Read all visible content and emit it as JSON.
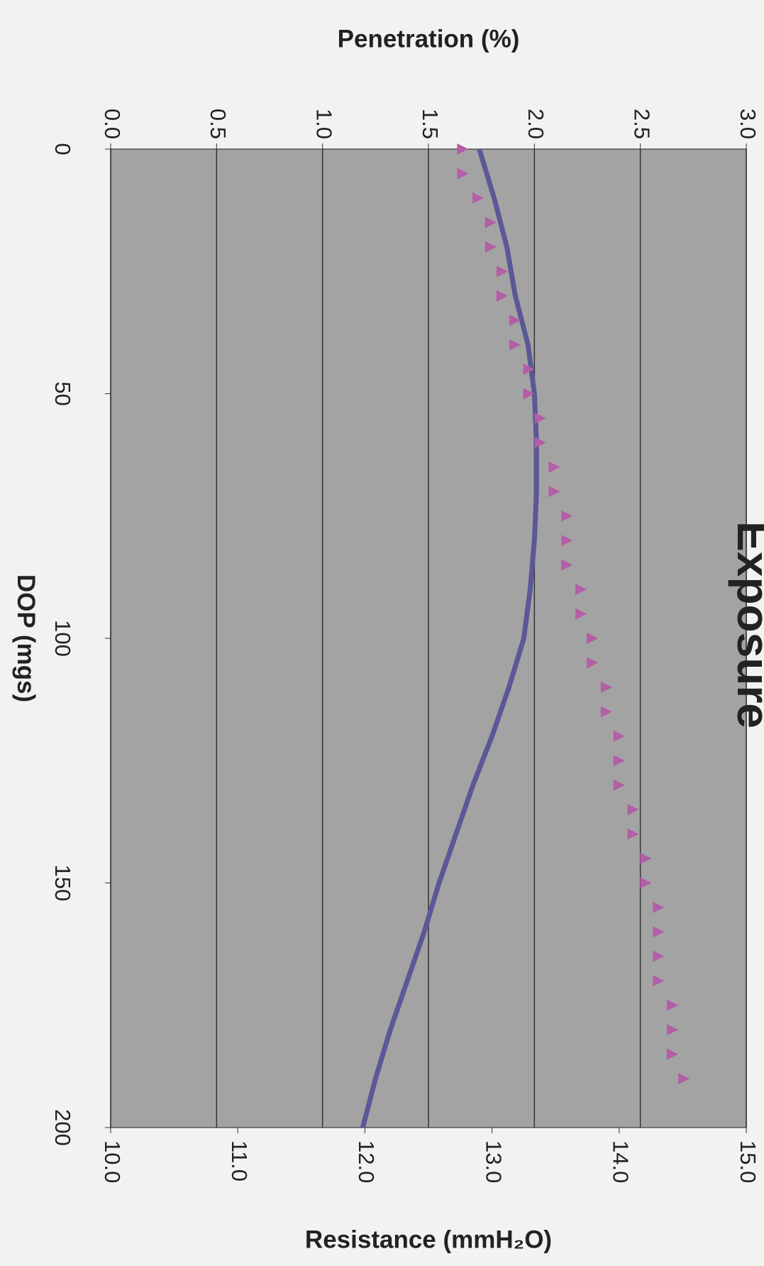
{
  "chart_data": {
    "type": "line",
    "title": "Exposure",
    "xlabel": "DOP (mgs)",
    "ylabel": "Penetration (%)",
    "y2label": "Resistance (mmH₂O)",
    "xlim": [
      0,
      200
    ],
    "xticks": [
      0,
      50,
      100,
      150,
      200
    ],
    "ylim": [
      0,
      3
    ],
    "yticks": [
      {
        "value": 0,
        "label": "0.0"
      },
      {
        "value": 0.5,
        "label": "0.5"
      },
      {
        "value": 1,
        "label": "1.0"
      },
      {
        "value": 1.5,
        "label": "1.5"
      },
      {
        "value": 2,
        "label": "2.0"
      },
      {
        "value": 2.5,
        "label": "2.5"
      },
      {
        "value": 3,
        "label": "3.0"
      }
    ],
    "y2lim": [
      10,
      15
    ],
    "y2ticks": [
      {
        "value": 10,
        "label": "10.0"
      },
      {
        "value": 11,
        "label": "11.0"
      },
      {
        "value": 12,
        "label": "12.0"
      },
      {
        "value": 13,
        "label": "13.0"
      },
      {
        "value": 14,
        "label": "14.0"
      },
      {
        "value": 15,
        "label": "15.0"
      }
    ],
    "grid": true,
    "rotation": 90,
    "series": [
      {
        "style": "line",
        "color": "#5b5897",
        "x": [
          0,
          10,
          20,
          30,
          40,
          50,
          60,
          70,
          80,
          90,
          100,
          110,
          120,
          130,
          140,
          150,
          160,
          170,
          180,
          190,
          200
        ],
        "values": [
          1.74,
          1.81,
          1.87,
          1.91,
          1.97,
          2.0,
          2.01,
          2.01,
          2.0,
          1.98,
          1.95,
          1.88,
          1.8,
          1.71,
          1.63,
          1.55,
          1.48,
          1.4,
          1.32,
          1.25,
          1.19
        ]
      },
      {
        "style": "triangle",
        "color": "#b35ea6",
        "axis": "y2",
        "x": [
          0,
          5,
          10,
          15,
          20,
          25,
          30,
          35,
          40,
          45,
          50,
          55,
          60,
          65,
          70,
          75,
          80,
          85,
          90,
          95,
          100,
          105,
          110,
          115,
          120,
          125,
          130,
          135,
          140,
          145,
          150,
          155,
          160,
          165,
          170,
          175,
          180,
          185,
          190
        ],
        "values": [
          12.77,
          12.77,
          12.89,
          12.99,
          12.99,
          13.08,
          13.08,
          13.18,
          13.18,
          13.29,
          13.29,
          13.38,
          13.38,
          13.49,
          13.49,
          13.59,
          13.59,
          13.59,
          13.7,
          13.7,
          13.79,
          13.79,
          13.9,
          13.9,
          14.0,
          14.0,
          14.0,
          14.11,
          14.11,
          14.21,
          14.21,
          14.31,
          14.31,
          14.31,
          14.31,
          14.42,
          14.42,
          14.42,
          14.51
        ]
      }
    ]
  }
}
